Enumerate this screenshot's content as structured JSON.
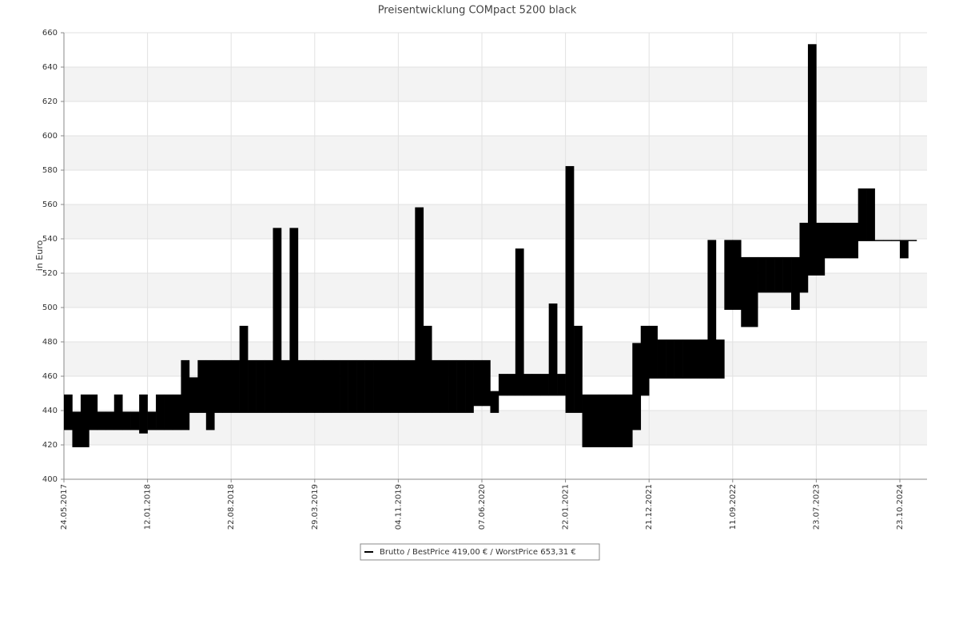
{
  "chart_data": {
    "type": "range",
    "title": "Preisentwicklung COMpact 5200 black",
    "y_label": "in Euro",
    "categories": [
      "24.05.2017",
      null,
      null,
      null,
      null,
      null,
      null,
      null,
      null,
      null,
      "12.01.2018",
      null,
      null,
      null,
      null,
      null,
      null,
      null,
      null,
      null,
      "22.08.2018",
      null,
      null,
      null,
      null,
      null,
      null,
      null,
      null,
      null,
      "29.03.2019",
      null,
      null,
      null,
      null,
      null,
      null,
      null,
      null,
      null,
      "04.11.2019",
      null,
      null,
      null,
      null,
      null,
      null,
      null,
      null,
      null,
      "07.06.2020",
      null,
      null,
      null,
      null,
      null,
      null,
      null,
      null,
      null,
      "22.01.2021",
      null,
      null,
      null,
      null,
      null,
      null,
      null,
      null,
      null,
      "21.12.2021",
      null,
      null,
      null,
      null,
      null,
      null,
      null,
      null,
      null,
      "11.09.2022",
      null,
      null,
      null,
      null,
      null,
      null,
      null,
      null,
      null,
      "23.07.2023",
      null,
      null,
      null,
      null,
      null,
      null,
      null,
      null,
      null,
      "23.10.2024",
      null
    ],
    "series": [
      {
        "name": "Brutto / BestPrice  419,00 € / WorstPrice  653,31 €",
        "color": "#000000",
        "low": [
          429,
          419,
          419,
          429,
          429,
          429,
          429,
          429,
          429,
          427,
          429,
          429,
          429,
          429,
          429,
          439,
          439,
          429,
          439,
          439,
          439,
          439,
          439,
          439,
          439,
          439,
          439,
          439,
          439,
          439,
          439,
          439,
          439,
          439,
          439,
          439,
          439,
          439,
          439,
          439,
          439,
          439,
          439,
          439,
          439,
          439,
          439,
          439,
          439,
          443,
          443,
          439,
          449,
          449,
          449,
          449,
          449,
          449,
          449,
          449,
          439,
          439,
          419,
          419,
          419,
          419,
          419,
          419,
          429,
          449,
          459,
          459,
          459,
          459,
          459,
          459,
          459,
          459,
          459,
          499,
          499,
          489,
          489,
          509,
          509,
          509,
          509,
          499,
          509,
          519,
          519,
          529,
          529,
          529,
          529,
          539,
          539,
          539,
          539,
          539,
          529,
          539
        ],
        "high": [
          449,
          439,
          449,
          449,
          439,
          439,
          449,
          439,
          439,
          449,
          439,
          449,
          449,
          449,
          469,
          459,
          469,
          469,
          469,
          469,
          469,
          489,
          469,
          469,
          469,
          546,
          469,
          546,
          469,
          469,
          469,
          469,
          469,
          469,
          469,
          469,
          469,
          469,
          469,
          469,
          469,
          469,
          558,
          489,
          469,
          469,
          469,
          469,
          469,
          469,
          469,
          451,
          461,
          461,
          534,
          461,
          461,
          461,
          502,
          461,
          582,
          489,
          449,
          449,
          449,
          449,
          449,
          449,
          479,
          489,
          489,
          481,
          481,
          481,
          481,
          481,
          481,
          539,
          481,
          539,
          539,
          529,
          529,
          529,
          529,
          529,
          529,
          529,
          549,
          653,
          549,
          549,
          549,
          549,
          549,
          569,
          569,
          539,
          539,
          539,
          539,
          539
        ]
      }
    ],
    "ylim": [
      400,
      660
    ],
    "yticks": [
      400,
      420,
      440,
      460,
      480,
      500,
      520,
      540,
      560,
      580,
      600,
      620,
      640,
      660
    ],
    "grid": true,
    "legend": "bottom"
  }
}
